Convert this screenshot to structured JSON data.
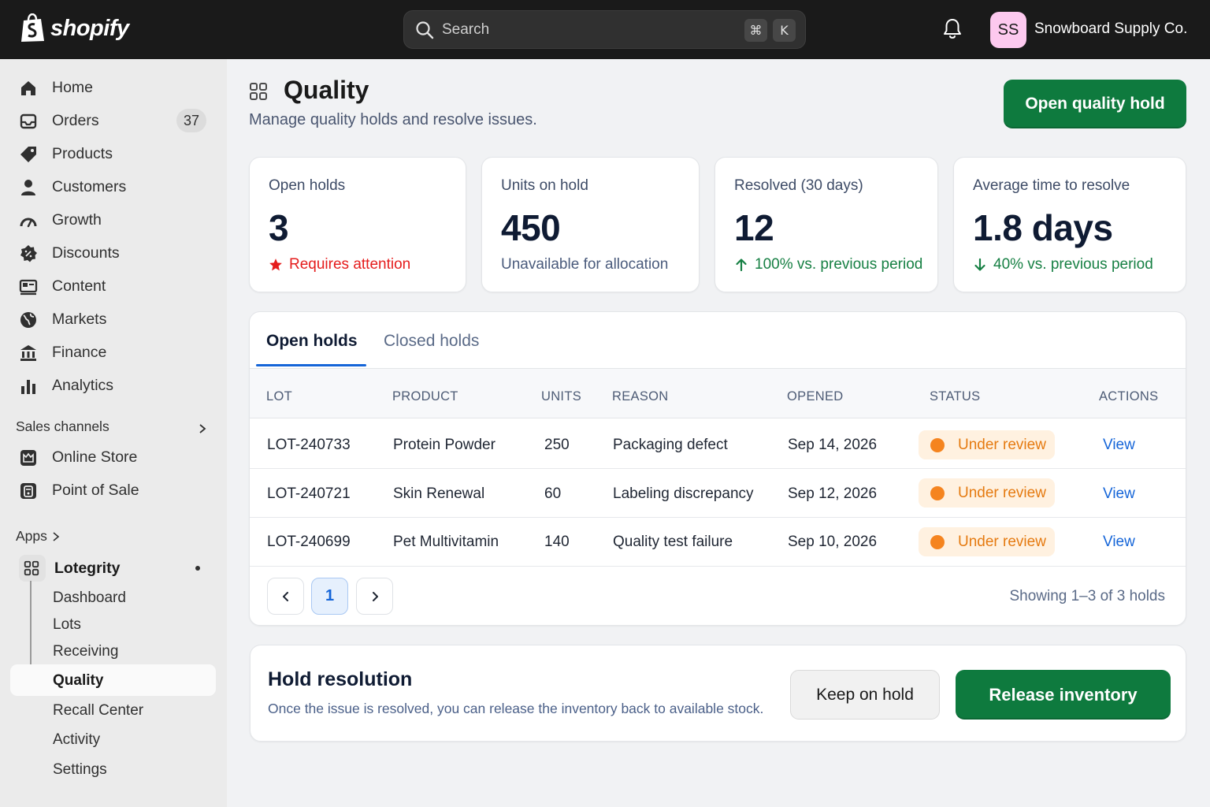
{
  "topbar": {
    "logo_text": "shopify",
    "search_placeholder": "Search",
    "shortcut_cmd": "⌘",
    "shortcut_key": "K",
    "avatar_initials": "SS",
    "store_name": "Snowboard Supply Co."
  },
  "sidebar": {
    "items": [
      {
        "label": "Home",
        "icon": "home-icon"
      },
      {
        "label": "Orders",
        "icon": "orders-icon",
        "badge": "37"
      },
      {
        "label": "Products",
        "icon": "tag-icon"
      },
      {
        "label": "Customers",
        "icon": "person-icon"
      },
      {
        "label": "Growth",
        "icon": "gauge-icon"
      },
      {
        "label": "Discounts",
        "icon": "discount-icon"
      },
      {
        "label": "Content",
        "icon": "content-icon"
      },
      {
        "label": "Markets",
        "icon": "globe-icon"
      },
      {
        "label": "Finance",
        "icon": "bank-icon"
      },
      {
        "label": "Analytics",
        "icon": "bar-chart-icon"
      }
    ],
    "sales_channels_label": "Sales channels",
    "channels": [
      {
        "label": "Online Store",
        "icon": "store-icon"
      },
      {
        "label": "Point of Sale",
        "icon": "pos-icon"
      }
    ],
    "apps_label": "Apps",
    "app_name": "Lotegrity",
    "app_subitems": [
      "Dashboard",
      "Lots",
      "Receiving",
      "Quality",
      "Recall Center",
      "Activity",
      "Settings"
    ],
    "active_subitem": "Quality"
  },
  "page": {
    "title": "Quality",
    "subtitle": "Manage quality holds and resolve issues.",
    "primary_action": "Open quality hold"
  },
  "stats": [
    {
      "label": "Open holds",
      "value": "3",
      "foot": "Requires attention",
      "foot_type": "alert"
    },
    {
      "label": "Units on hold",
      "value": "450",
      "foot": "Unavailable for allocation",
      "foot_type": "neutral"
    },
    {
      "label": "Resolved (30 days)",
      "value": "12",
      "foot": "100% vs. previous period",
      "foot_type": "up"
    },
    {
      "label": "Average time to resolve",
      "value": "1.8 days",
      "foot": "40% vs. previous period",
      "foot_type": "down"
    }
  ],
  "tabs": [
    {
      "label": "Open holds",
      "active": true
    },
    {
      "label": "Closed holds",
      "active": false
    }
  ],
  "table": {
    "columns": [
      "LOT",
      "PRODUCT",
      "UNITS",
      "REASON",
      "OPENED",
      "STATUS",
      "ACTIONS"
    ],
    "rows": [
      {
        "lot": "LOT-240733",
        "product": "Protein Powder",
        "units": "250",
        "reason": "Packaging defect",
        "opened": "Sep 14, 2026",
        "status": "Under review",
        "action": "View"
      },
      {
        "lot": "LOT-240721",
        "product": "Skin Renewal",
        "units": "60",
        "reason": "Labeling discrepancy",
        "opened": "Sep 12, 2026",
        "status": "Under review",
        "action": "View"
      },
      {
        "lot": "LOT-240699",
        "product": "Pet Multivitamin",
        "units": "140",
        "reason": "Quality test failure",
        "opened": "Sep 10, 2026",
        "status": "Under review",
        "action": "View"
      }
    ]
  },
  "pagination": {
    "current_page": "1",
    "showing": "Showing 1–3 of 3 holds"
  },
  "resolution": {
    "title": "Hold resolution",
    "description": "Once the issue is resolved, you can release the inventory back to available stock.",
    "secondary_action": "Keep on hold",
    "primary_action": "Release inventory"
  },
  "colors": {
    "primary_green": "#0e7a3e",
    "link_blue": "#1565d8",
    "status_orange": "#f5841f",
    "alert_red": "#e51c1c"
  }
}
